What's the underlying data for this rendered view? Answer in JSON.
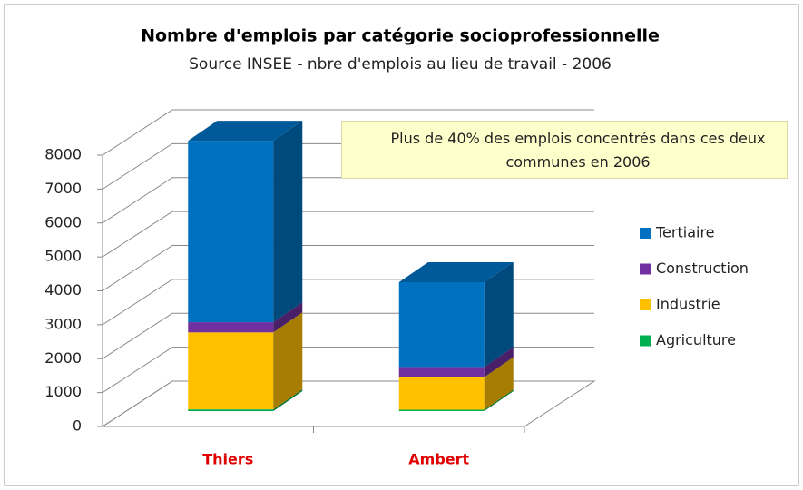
{
  "chart_data": {
    "type": "bar3d_stacked",
    "title": "Nombre d'emplois par catégorie socioprofessionnelle",
    "subtitle": "Source INSEE - nbre d'emplois au lieu de travail - 2006",
    "annotation": "Plus de 40% des emplois concentrés dans ces deux communes en 2006",
    "categories": [
      "Thiers",
      "Ambert"
    ],
    "series": [
      {
        "name": "Agriculture",
        "color": "#00b050",
        "values": [
          50,
          40
        ]
      },
      {
        "name": "Industrie",
        "color": "#ffc000",
        "values": [
          2270,
          960
        ]
      },
      {
        "name": "Construction",
        "color": "#7030a0",
        "values": [
          300,
          300
        ]
      },
      {
        "name": "Tertiaire",
        "color": "#0070c0",
        "values": [
          5350,
          2500
        ]
      }
    ],
    "ylim": [
      0,
      8000
    ],
    "yticks": [
      0,
      1000,
      2000,
      3000,
      4000,
      5000,
      6000,
      7000,
      8000
    ],
    "grid": true,
    "legend": "right"
  }
}
